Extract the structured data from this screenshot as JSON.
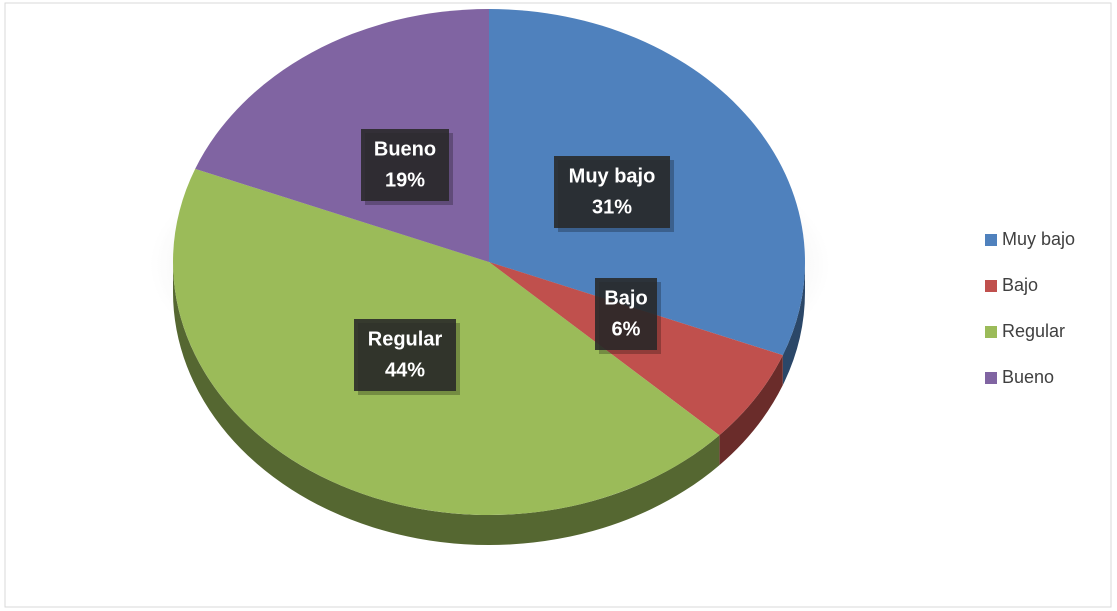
{
  "chart_data": {
    "type": "pie",
    "categories": [
      "Muy bajo",
      "Bajo",
      "Regular",
      "Bueno"
    ],
    "values": [
      31,
      6,
      44,
      19
    ],
    "value_labels": [
      "31%",
      "6%",
      "44%",
      "19%"
    ],
    "colors": [
      "#4f81bd",
      "#c0504d",
      "#9bbb59",
      "#8064a2"
    ],
    "legend": "right"
  }
}
